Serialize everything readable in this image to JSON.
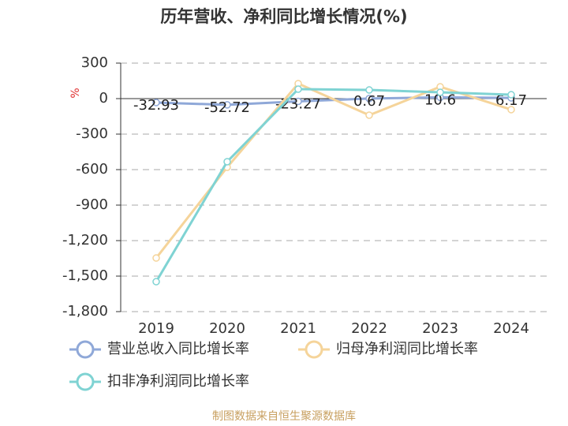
{
  "chart_data": {
    "type": "line",
    "title": "历年营收、净利同比增长情况(%)",
    "y_label": "%",
    "categories": [
      "2019",
      "2020",
      "2021",
      "2022",
      "2023",
      "2024"
    ],
    "series": [
      {
        "name": "营业总收入同比增长率",
        "color": "#8fa8d8",
        "values": [
          -32.93,
          -52.72,
          -23.27,
          0.67,
          10.6,
          6.17
        ],
        "show_labels": true
      },
      {
        "name": "归母净利润同比增长率",
        "color": "#f5d49a",
        "values": [
          -1347,
          -580,
          127,
          -140,
          100,
          -93
        ]
      },
      {
        "name": "扣非净利润同比增长率",
        "color": "#7fd3d3",
        "values": [
          -1547,
          -533,
          80,
          73,
          53,
          33
        ]
      }
    ],
    "ylim": [
      -1800,
      300
    ],
    "yticks": [
      300,
      0,
      -300,
      -600,
      -900,
      {
        "value": -1200,
        "label": "-1,200"
      },
      {
        "value": -1500,
        "label": "-1,500"
      },
      {
        "value": -1800,
        "label": "-1,800"
      }
    ],
    "grid": true,
    "source": "制图数据来自恒生聚源数据库"
  }
}
